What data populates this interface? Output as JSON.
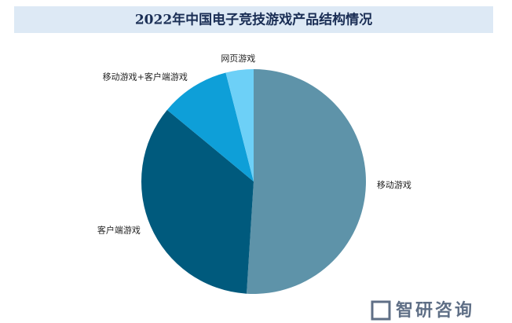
{
  "chart_data": {
    "type": "pie",
    "title": "2022年中国电子竞技游戏产品结构情况",
    "categories": [
      "移动游戏",
      "客户端游戏",
      "移动游戏+客户端游戏",
      "网页游戏"
    ],
    "values": [
      51,
      35,
      10,
      4
    ],
    "colors": [
      "#5e93a9",
      "#005a7d",
      "#0e9fd8",
      "#6dd0f7"
    ],
    "brand": "智研咨询"
  }
}
